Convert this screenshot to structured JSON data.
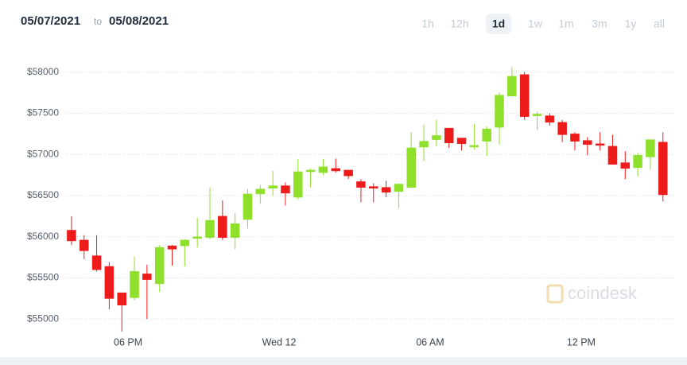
{
  "header": {
    "date_from": "05/07/2021",
    "separator": "to",
    "date_to": "05/08/2021"
  },
  "range_buttons": [
    "1h",
    "12h",
    "1d",
    "1w",
    "1m",
    "3m",
    "1y",
    "all"
  ],
  "selected_range": "1d",
  "watermark": "coindesk",
  "chart_data": {
    "type": "candlestick",
    "up_color": "#8ee02b",
    "down_color": "#ee1b1b",
    "grid": true,
    "xlim": [
      15.5,
      39.7
    ],
    "xticks": [
      {
        "value": 18,
        "label": "06 PM"
      },
      {
        "value": 24,
        "label": "Wed 12"
      },
      {
        "value": 30,
        "label": "06 AM"
      },
      {
        "value": 36,
        "label": "12 PM"
      }
    ],
    "ylim": [
      54800,
      58200
    ],
    "yticks": [
      {
        "value": 55000,
        "label": "$55000"
      },
      {
        "value": 55500,
        "label": "$55500"
      },
      {
        "value": 56000,
        "label": "$56000"
      },
      {
        "value": 56500,
        "label": "$56500"
      },
      {
        "value": 57000,
        "label": "$57000"
      },
      {
        "value": 57500,
        "label": "$57500"
      },
      {
        "value": 58000,
        "label": "$58000"
      }
    ],
    "x": [
      15.75,
      16.25,
      16.75,
      17.25,
      17.75,
      18.25,
      18.75,
      19.25,
      19.75,
      20.25,
      20.75,
      21.25,
      21.75,
      22.25,
      22.75,
      23.25,
      23.75,
      24.25,
      24.75,
      25.25,
      25.75,
      26.25,
      26.75,
      27.25,
      27.75,
      28.25,
      28.75,
      29.25,
      29.75,
      30.25,
      30.75,
      31.25,
      31.75,
      32.25,
      32.75,
      33.25,
      33.75,
      34.25,
      34.75,
      35.25,
      35.75,
      36.25,
      36.75,
      37.25,
      37.75,
      38.25,
      38.75,
      39.25
    ],
    "open": [
      56080,
      55960,
      55770,
      55640,
      55320,
      55260,
      55550,
      55430,
      55890,
      55890,
      55980,
      55990,
      56250,
      55990,
      56210,
      56520,
      56590,
      56620,
      56480,
      56790,
      56780,
      56830,
      56810,
      56670,
      56610,
      56600,
      56550,
      56600,
      57090,
      57180,
      57320,
      57200,
      57090,
      57160,
      57330,
      57710,
      57970,
      57470,
      57470,
      57390,
      57250,
      57170,
      57130,
      57100,
      56900,
      56840,
      56970,
      57150
    ],
    "high": [
      56250,
      56020,
      56020,
      55690,
      55320,
      55760,
      55660,
      55900,
      55900,
      55970,
      56230,
      56600,
      56440,
      56290,
      56580,
      56630,
      56800,
      56660,
      56940,
      56830,
      56940,
      56950,
      56810,
      56700,
      56650,
      56680,
      56650,
      57270,
      57360,
      57420,
      57320,
      57200,
      57370,
      57340,
      57750,
      58060,
      58000,
      57520,
      57500,
      57420,
      57270,
      57210,
      57270,
      57240,
      57040,
      57020,
      57180,
      57270
    ],
    "low": [
      55900,
      55730,
      55580,
      55120,
      54850,
      55230,
      55000,
      55330,
      55650,
      55640,
      55870,
      55970,
      55960,
      55850,
      56100,
      56400,
      56500,
      56380,
      56450,
      56600,
      56750,
      56780,
      56700,
      56420,
      56420,
      56480,
      56350,
      56600,
      56920,
      57100,
      57080,
      57050,
      57060,
      56980,
      57120,
      57700,
      57420,
      57300,
      57350,
      57150,
      57050,
      56990,
      57050,
      56880,
      56700,
      56730,
      56820,
      56430
    ],
    "close": [
      55950,
      55830,
      55600,
      55250,
      55170,
      55580,
      55480,
      55870,
      55850,
      55960,
      56000,
      56200,
      55990,
      56160,
      56520,
      56580,
      56620,
      56530,
      56790,
      56810,
      56850,
      56800,
      56740,
      56600,
      56590,
      56540,
      56640,
      57080,
      57160,
      57230,
      57140,
      57130,
      57110,
      57310,
      57720,
      57950,
      57460,
      57490,
      57390,
      57240,
      57160,
      57120,
      57110,
      56880,
      56830,
      56990,
      57180,
      56510
    ]
  }
}
